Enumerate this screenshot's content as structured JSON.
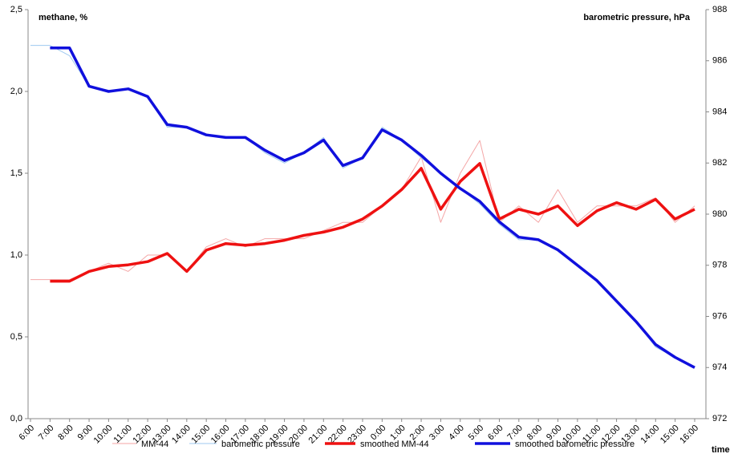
{
  "chart_data": {
    "type": "line",
    "ylabel": "methane, %",
    "y2label": "barometric pressure, hPa",
    "xlabel": "time",
    "categories": [
      "6:00",
      "7:00",
      "8:00",
      "9:00",
      "10:00",
      "11:00",
      "12:00",
      "13:00",
      "14:00",
      "15:00",
      "16:00",
      "17:00",
      "18:00",
      "19:00",
      "20:00",
      "21:00",
      "22:00",
      "23:00",
      "0:00",
      "1:00",
      "2:00",
      "3:00",
      "4:00",
      "5:00",
      "6:00",
      "7:00",
      "8:00",
      "9:00",
      "10:00",
      "11:00",
      "12:00",
      "13:00",
      "14:00",
      "15:00",
      "16:00"
    ],
    "ylim": [
      0,
      2.5
    ],
    "yticks": [
      {
        "value": 0,
        "label": "0,0"
      },
      {
        "value": 0.5,
        "label": "0,5"
      },
      {
        "value": 1,
        "label": "1,0"
      },
      {
        "value": 1.5,
        "label": "1,5"
      },
      {
        "value": 2,
        "label": "2,0"
      },
      {
        "value": 2.5,
        "label": "2,5"
      }
    ],
    "y2lim": [
      972,
      988
    ],
    "y2ticks": [
      972,
      974,
      976,
      978,
      980,
      982,
      984,
      986,
      988
    ],
    "series": [
      {
        "name": "MM-44",
        "color": "#f4a6a6",
        "width": 1,
        "values": [
          0.85,
          0.85,
          0.85,
          0.9,
          0.95,
          0.9,
          1.0,
          1.0,
          0.9,
          1.05,
          1.1,
          1.05,
          1.1,
          1.1,
          1.1,
          1.15,
          1.2,
          1.2,
          1.3,
          1.4,
          1.6,
          1.2,
          1.5,
          1.7,
          1.2,
          1.3,
          1.2,
          1.4,
          1.2,
          1.3,
          1.3,
          1.3,
          1.35,
          1.2,
          1.3
        ]
      },
      {
        "name": "barometric pressure",
        "color": "#9fc9f0",
        "width": 1,
        "axis": "y2",
        "values": [
          986.6,
          986.6,
          986.2,
          985.0,
          984.8,
          984.9,
          984.6,
          983.4,
          983.4,
          983.1,
          983.0,
          983.0,
          982.4,
          982.0,
          982.4,
          983.0,
          981.8,
          982.2,
          983.4,
          982.9,
          982.2,
          981.6,
          981.0,
          980.4,
          979.6,
          979.0,
          979.0,
          978.6,
          978.0,
          977.4,
          976.6,
          975.8,
          974.8,
          974.4,
          974.0
        ]
      },
      {
        "name": "smoothed  MM-44",
        "color": "#ee1111",
        "width": 3.5,
        "values": [
          null,
          0.84,
          0.84,
          0.9,
          0.93,
          0.94,
          0.96,
          1.01,
          0.9,
          1.03,
          1.07,
          1.06,
          1.07,
          1.09,
          1.12,
          1.14,
          1.17,
          1.22,
          1.3,
          1.4,
          1.53,
          1.28,
          1.45,
          1.56,
          1.22,
          1.28,
          1.25,
          1.3,
          1.18,
          1.27,
          1.32,
          1.28,
          1.34,
          1.22,
          1.28
        ]
      },
      {
        "name": "smoothed barometric pressure",
        "color": "#1010dd",
        "width": 3.5,
        "axis": "y2",
        "values": [
          null,
          986.5,
          986.5,
          985.0,
          984.8,
          984.9,
          984.6,
          983.5,
          983.4,
          983.1,
          983.0,
          983.0,
          982.5,
          982.1,
          982.4,
          982.9,
          981.9,
          982.2,
          983.3,
          982.9,
          982.3,
          981.6,
          981.0,
          980.5,
          979.7,
          979.1,
          979.0,
          978.6,
          978.0,
          977.4,
          976.6,
          975.8,
          974.9,
          974.4,
          974.0
        ]
      }
    ]
  }
}
